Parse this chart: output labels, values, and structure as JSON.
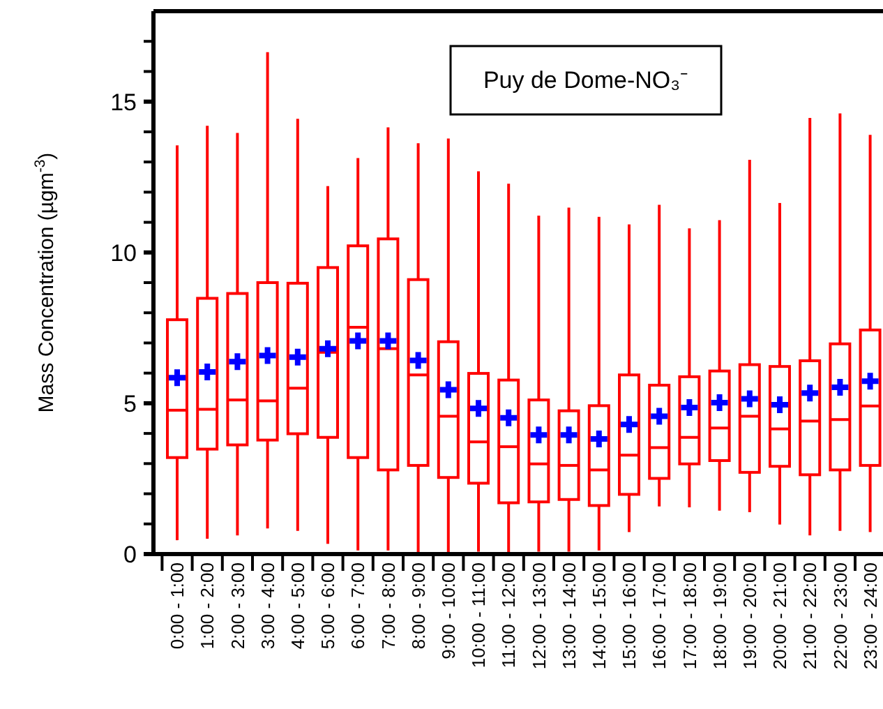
{
  "chart_data": {
    "type": "box",
    "title": "Puy de Dome-NO₃⁻",
    "ylabel": "Mass Concentration (µgm$^{-3}$)",
    "categories": [
      "0:00 - 1:00",
      "1:00 - 2:00",
      "2:00 - 3:00",
      "3:00 - 4:00",
      "4:00 - 5:00",
      "5:00 - 6:00",
      "6:00 - 7:00",
      "7:00 - 8:00",
      "8:00 - 9:00",
      "9:00 - 10:00",
      "10:00 - 11:00",
      "11:00 - 12:00",
      "12:00 - 13:00",
      "13:00 - 14:00",
      "14:00 - 15:00",
      "15:00 - 16:00",
      "16:00 - 17:00",
      "17:00 - 18:00",
      "18:00 - 19:00",
      "19:00 - 20:00",
      "20:00 - 21:00",
      "21:00 - 22:00",
      "22:00 - 23:00",
      "23:00 - 24:00"
    ],
    "ylim": [
      0,
      18
    ],
    "yticks": [
      0,
      {
        "value": 1,
        "label": null
      },
      {
        "value": 2,
        "label": null
      },
      {
        "value": 3,
        "label": null
      },
      {
        "value": 4,
        "label": null
      },
      5,
      {
        "value": 6,
        "label": null
      },
      {
        "value": 7,
        "label": null
      },
      {
        "value": 8,
        "label": null
      },
      {
        "value": 9,
        "label": null
      },
      10,
      {
        "value": 11,
        "label": null
      },
      {
        "value": 12,
        "label": null
      },
      {
        "value": 13,
        "label": null
      },
      {
        "value": 14,
        "label": null
      },
      15,
      {
        "value": 16,
        "label": null
      },
      {
        "value": 17,
        "label": null
      }
    ],
    "grid": false,
    "series": [
      {
        "color": "#ff0000",
        "boxes": [
          {
            "low": 0.46,
            "q1": 3.2,
            "median": 4.77,
            "q3": 7.77,
            "high": 13.55
          },
          {
            "low": 0.51,
            "q1": 3.48,
            "median": 4.8,
            "q3": 8.48,
            "high": 14.2
          },
          {
            "low": 0.62,
            "q1": 3.62,
            "median": 5.11,
            "q3": 8.64,
            "high": 13.96
          },
          {
            "low": 0.85,
            "q1": 3.78,
            "median": 5.08,
            "q3": 9.0,
            "high": 16.64
          },
          {
            "low": 0.77,
            "q1": 3.99,
            "median": 5.5,
            "q3": 8.98,
            "high": 14.43
          },
          {
            "low": 0.34,
            "q1": 3.87,
            "median": 6.69,
            "q3": 9.5,
            "high": 12.2
          },
          {
            "low": 0.12,
            "q1": 3.2,
            "median": 7.52,
            "q3": 10.22,
            "high": 13.13
          },
          {
            "low": 0.12,
            "q1": 2.79,
            "median": 6.81,
            "q3": 10.45,
            "high": 14.15
          },
          {
            "low": 0,
            "q1": 2.94,
            "median": 5.94,
            "q3": 9.1,
            "high": 13.62
          },
          {
            "low": 0,
            "q1": 2.54,
            "median": 4.57,
            "q3": 7.04,
            "high": 13.78
          },
          {
            "low": 0.08,
            "q1": 2.35,
            "median": 3.72,
            "q3": 5.99,
            "high": 12.69
          },
          {
            "low": 0,
            "q1": 1.7,
            "median": 3.56,
            "q3": 5.77,
            "high": 12.28
          },
          {
            "low": 0.08,
            "q1": 1.73,
            "median": 2.99,
            "q3": 5.11,
            "high": 11.22
          },
          {
            "low": 0.08,
            "q1": 1.81,
            "median": 2.94,
            "q3": 4.75,
            "high": 11.49
          },
          {
            "low": 0.12,
            "q1": 1.61,
            "median": 2.79,
            "q3": 4.92,
            "high": 11.18
          },
          {
            "low": 0.73,
            "q1": 1.98,
            "median": 3.28,
            "q3": 5.94,
            "high": 10.93
          },
          {
            "low": 1.58,
            "q1": 2.51,
            "median": 3.53,
            "q3": 5.6,
            "high": 11.58
          },
          {
            "low": 1.55,
            "q1": 2.99,
            "median": 3.87,
            "q3": 5.88,
            "high": 10.8
          },
          {
            "low": 1.44,
            "q1": 3.1,
            "median": 4.18,
            "q3": 6.07,
            "high": 11.07
          },
          {
            "low": 1.39,
            "q1": 2.71,
            "median": 4.57,
            "q3": 6.28,
            "high": 13.07
          },
          {
            "low": 0.98,
            "q1": 2.91,
            "median": 4.15,
            "q3": 6.22,
            "high": 11.64
          },
          {
            "low": 0.62,
            "q1": 2.63,
            "median": 4.41,
            "q3": 6.41,
            "high": 14.46
          },
          {
            "low": 0.77,
            "q1": 2.79,
            "median": 4.46,
            "q3": 6.97,
            "high": 14.61
          },
          {
            "low": 0.73,
            "q1": 2.94,
            "median": 4.91,
            "q3": 7.43,
            "high": 13.9
          }
        ]
      },
      {
        "type": "scatter",
        "color": "#0000ff",
        "marker": "cross",
        "x": [
          "0:00 - 1:00",
          "1:00 - 2:00",
          "2:00 - 3:00",
          "3:00 - 4:00",
          "4:00 - 5:00",
          "5:00 - 6:00",
          "6:00 - 7:00",
          "7:00 - 8:00",
          "8:00 - 9:00",
          "9:00 - 10:00",
          "10:00 - 11:00",
          "11:00 - 12:00",
          "12:00 - 13:00",
          "13:00 - 14:00",
          "14:00 - 15:00",
          "15:00 - 16:00",
          "16:00 - 17:00",
          "17:00 - 18:00",
          "18:00 - 19:00",
          "19:00 - 20:00",
          "20:00 - 21:00",
          "21:00 - 22:00",
          "22:00 - 23:00",
          "23:00 - 24:00"
        ],
        "values": [
          5.85,
          6.04,
          6.38,
          6.58,
          6.53,
          6.81,
          7.07,
          7.07,
          6.42,
          5.45,
          4.83,
          4.52,
          3.95,
          3.95,
          3.82,
          4.3,
          4.57,
          4.86,
          5.02,
          5.15,
          4.95,
          5.34,
          5.53,
          5.73
        ]
      }
    ]
  }
}
